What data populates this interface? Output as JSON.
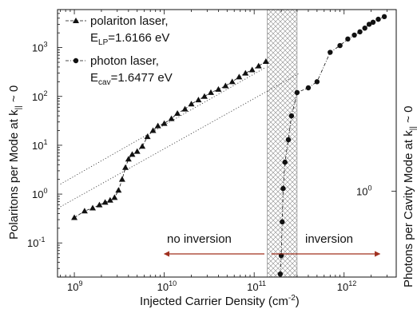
{
  "chart_data": {
    "type": "scatter",
    "xlabel": "Injected Carrier Density (cm",
    "xlabel_sup": "-2",
    "xlabel_end": ")",
    "ylabel_left": "Polaritons per Mode at k",
    "ylabel_left_sub": "||",
    "ylabel_left_end": "~ 0",
    "ylabel_right": "Photons per Cavity Mode at k",
    "ylabel_right_sub": "||",
    "ylabel_right_end": "~ 0",
    "x_scale": "log",
    "y_scale": "log",
    "xlim": [
      650000000.0,
      3800000000000.0
    ],
    "ylim": [
      0.02,
      6000
    ],
    "x_ticks": [
      {
        "value": 1000000000.0,
        "base": "10",
        "exp": "9"
      },
      {
        "value": 10000000000.0,
        "base": "10",
        "exp": "10"
      },
      {
        "value": 100000000000.0,
        "base": "10",
        "exp": "11"
      },
      {
        "value": 1000000000000.0,
        "base": "10",
        "exp": "12"
      }
    ],
    "y_ticks": [
      {
        "value": 0.1,
        "base": "10",
        "exp": "-1"
      },
      {
        "value": 1,
        "base": "10",
        "exp": "0"
      },
      {
        "value": 10,
        "base": "10",
        "exp": "1"
      },
      {
        "value": 100,
        "base": "10",
        "exp": "2"
      },
      {
        "value": 1000,
        "base": "10",
        "exp": "3"
      }
    ],
    "right_axis_label": "10",
    "right_axis_label_exp": "0",
    "shaded_region": {
      "x": [
        140000000000.0,
        300000000000.0
      ],
      "pattern": "crosshatch"
    },
    "annotations": [
      {
        "text": "no inversion",
        "arrow": "left",
        "from": 130000000000.0,
        "to": 10000000000.0
      },
      {
        "text": "inversion",
        "arrow": "right",
        "from": 155000000000.0,
        "to": 2500000000000.0
      }
    ],
    "legend": {
      "placement": "top-left"
    },
    "series": [
      {
        "name": "polariton laser,",
        "sublabel": "E",
        "sublabel_sub": "LP",
        "sublabel_value": "=1.6166 eV",
        "marker": "triangle",
        "style": "dashed",
        "color": "#111111",
        "points": [
          [
            1000000000.0,
            0.33
          ],
          [
            1300000000.0,
            0.45
          ],
          [
            1600000000.0,
            0.52
          ],
          [
            1900000000.0,
            0.6
          ],
          [
            2200000000.0,
            0.68
          ],
          [
            2500000000.0,
            0.75
          ],
          [
            2800000000.0,
            0.85
          ],
          [
            3100000000.0,
            1.2
          ],
          [
            3400000000.0,
            2.0
          ],
          [
            3700000000.0,
            3.5
          ],
          [
            4000000000.0,
            5.2
          ],
          [
            4400000000.0,
            6.5
          ],
          [
            5000000000.0,
            7.5
          ],
          [
            5700000000.0,
            9.5
          ],
          [
            6500000000.0,
            15
          ],
          [
            7500000000.0,
            20
          ],
          [
            8500000000.0,
            25
          ],
          [
            10000000000.0,
            28
          ],
          [
            12000000000.0,
            35
          ],
          [
            14000000000.0,
            45
          ],
          [
            17000000000.0,
            55
          ],
          [
            20000000000.0,
            70
          ],
          [
            24000000000.0,
            85
          ],
          [
            28000000000.0,
            100
          ],
          [
            33000000000.0,
            120
          ],
          [
            40000000000.0,
            140
          ],
          [
            48000000000.0,
            165
          ],
          [
            57000000000.0,
            200
          ],
          [
            68000000000.0,
            250
          ],
          [
            80000000000.0,
            300
          ],
          [
            95000000000.0,
            350
          ],
          [
            112000000000.0,
            420
          ],
          [
            135000000000.0,
            520
          ]
        ]
      },
      {
        "name": "photon laser,",
        "sublabel": "E",
        "sublabel_sub": "cav",
        "sublabel_value": "=1.6477 eV",
        "marker": "circle",
        "style": "dash-dot",
        "color": "#111111",
        "points": [
          [
            195000000000.0,
            0.023
          ],
          [
            200000000000.0,
            0.055
          ],
          [
            205000000000.0,
            0.27
          ],
          [
            210000000000.0,
            1.3
          ],
          [
            220000000000.0,
            4.5
          ],
          [
            240000000000.0,
            13
          ],
          [
            260000000000.0,
            40
          ],
          [
            300000000000.0,
            120
          ],
          [
            400000000000.0,
            150
          ],
          [
            500000000000.0,
            200
          ],
          [
            700000000000.0,
            800
          ],
          [
            900000000000.0,
            1100
          ],
          [
            1100000000000.0,
            1500
          ],
          [
            1300000000000.0,
            1800
          ],
          [
            1500000000000.0,
            2100
          ],
          [
            1700000000000.0,
            2500
          ],
          [
            1900000000000.0,
            3000
          ],
          [
            2100000000000.0,
            3300
          ],
          [
            2400000000000.0,
            3800
          ],
          [
            2800000000000.0,
            4300
          ]
        ]
      }
    ],
    "reference_lines": [
      {
        "style": "dotted",
        "from": [
          700000000.0,
          1.6
        ],
        "to": [
          130000000000.0,
          380
        ]
      },
      {
        "style": "dotted",
        "from": [
          700000000.0,
          0.55
        ],
        "to": [
          320000000000.0,
          300
        ]
      }
    ]
  }
}
